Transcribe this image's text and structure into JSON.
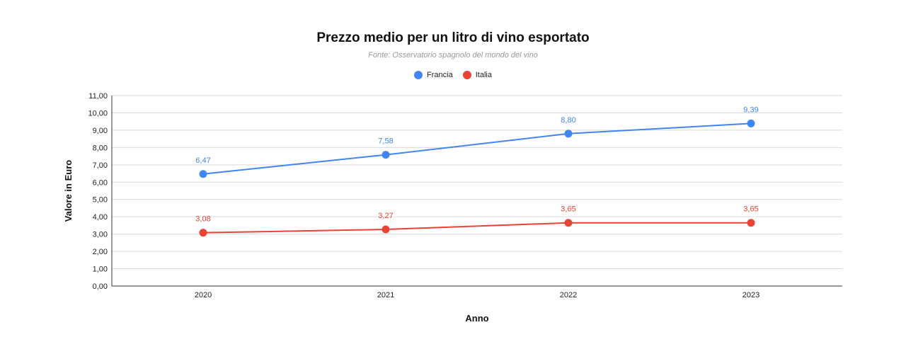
{
  "chart_data": {
    "type": "line",
    "title": "Prezzo medio per un litro di vino esportato",
    "subtitle": "Fonte: Osservatorio spagnolo del mondo del vino",
    "xlabel": "Anno",
    "ylabel": "Valore in Euro",
    "categories": [
      "2020",
      "2021",
      "2022",
      "2023"
    ],
    "ylim": [
      0,
      11
    ],
    "yticks": [
      "0,00",
      "1,00",
      "2,00",
      "3,00",
      "4,00",
      "5,00",
      "6,00",
      "7,00",
      "8,00",
      "9,00",
      "10,00",
      "11,00"
    ],
    "grid": true,
    "legend_position": "top",
    "series": [
      {
        "name": "Francia",
        "color": "#4285f4",
        "values": [
          6.47,
          7.58,
          8.8,
          9.39
        ],
        "labels": [
          "6,47",
          "7,58",
          "8,80",
          "9,39"
        ]
      },
      {
        "name": "Italia",
        "color": "#ea4335",
        "values": [
          3.08,
          3.27,
          3.65,
          3.65
        ],
        "labels": [
          "3,08",
          "3,27",
          "3,65",
          "3,65"
        ]
      }
    ]
  }
}
